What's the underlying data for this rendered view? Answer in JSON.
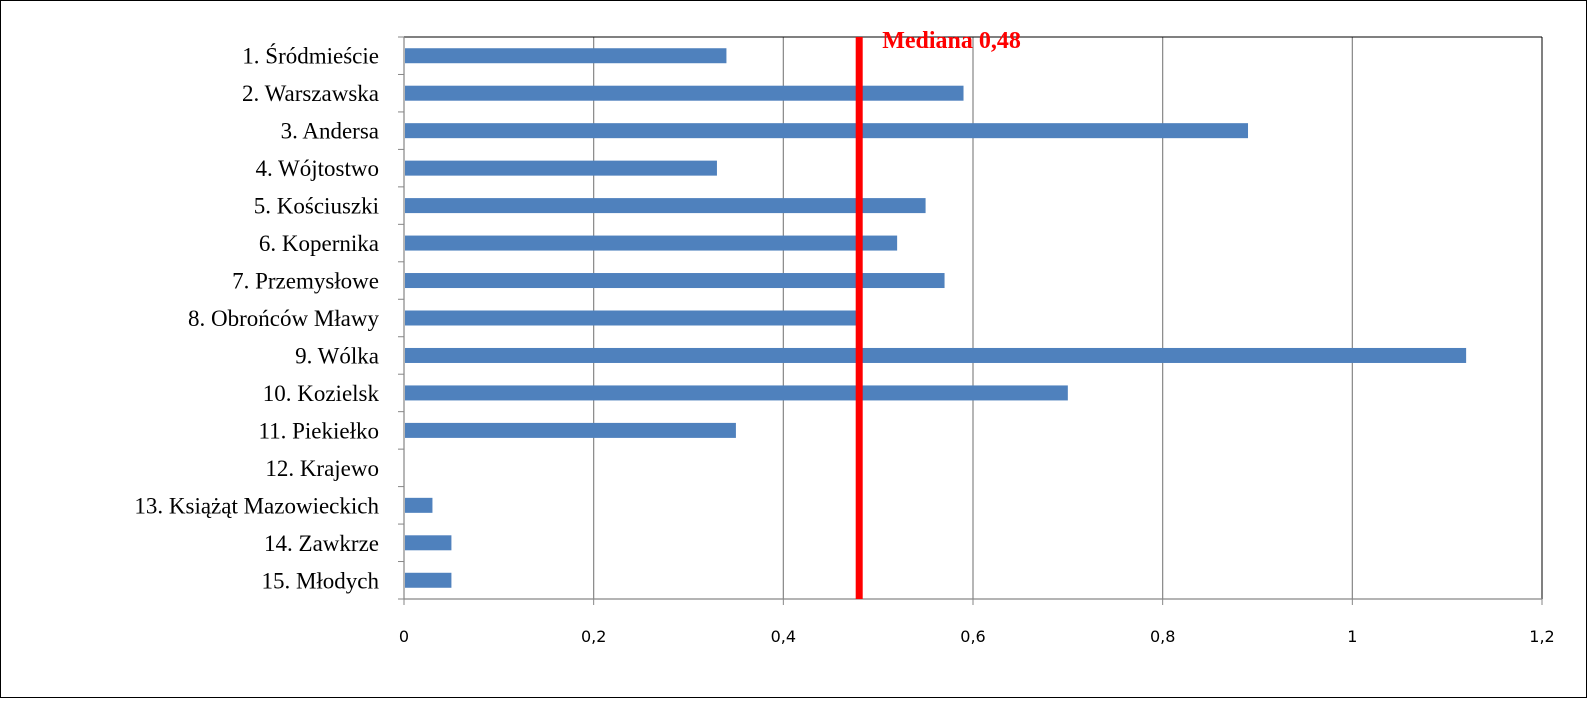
{
  "chart_data": {
    "type": "bar",
    "orientation": "horizontal",
    "categories": [
      "1. Śródmieście",
      "2. Warszawska",
      "3. Andersa",
      "4. Wójtostwo",
      "5. Kościuszki",
      "6. Kopernika",
      "7. Przemysłowe",
      "8. Obrońców Mławy",
      "9. Wólka",
      "10. Kozielsk",
      "11. Piekiełko",
      "12. Krajewo",
      "13. Książąt Mazowieckich",
      "14. Zawkrze",
      "15. Młodych"
    ],
    "values": [
      0.34,
      0.59,
      0.89,
      0.33,
      0.55,
      0.52,
      0.57,
      0.48,
      1.12,
      0.7,
      0.35,
      0,
      0.03,
      0.05,
      0.05
    ],
    "xlim": [
      0,
      1.2
    ],
    "xticks": [
      0,
      0.2,
      0.4,
      0.6,
      0.8,
      1.0,
      1.2
    ],
    "xtick_labels": [
      "0",
      "0,2",
      "0,4",
      "0,6",
      "0,8",
      "1",
      "1,2"
    ],
    "grid": "vertical",
    "bar_color": "#4F81BD",
    "median": {
      "value": 0.48,
      "label": "Mediana 0,48",
      "color": "#FF0000"
    }
  }
}
